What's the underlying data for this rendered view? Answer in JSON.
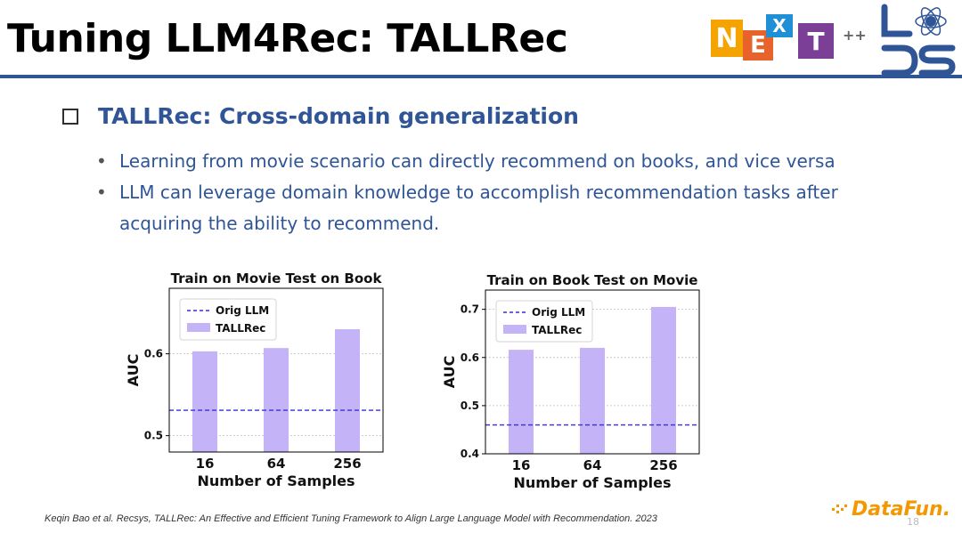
{
  "slide": {
    "title": "Tuning LLM4Rec: TALLRec",
    "section_heading": "TALLRec: Cross-domain generalization",
    "bullets": [
      "Learning from movie scenario can directly recommend on books, and vice versa",
      "LLM can leverage domain knowledge to accomplish recommendation tasks after acquiring the ability to recommend."
    ],
    "citation": "Keqin Bao et al. Recsys, TALLRec: An Effective and Efficient Tuning Framework to Align Large Language Model with Recommendation. 2023",
    "page_number": "18"
  },
  "logos": {
    "next_letters": [
      "N",
      "E",
      "X",
      "T"
    ],
    "next_suffix": "++",
    "next_colors": [
      "#f5a300",
      "#e8632b",
      "#1f8fd6",
      "#7b3f98"
    ],
    "brand": "DataFun.",
    "brand_color": "#f39800",
    "lds_color": "#2f5597"
  },
  "colors": {
    "accent": "#2f5597",
    "bar": "#c5b3f7",
    "orig_line": "#3a2fd6"
  },
  "chart_data": [
    {
      "type": "bar",
      "title": "Train on Movie Test on Book",
      "xlabel": "Number of Samples",
      "ylabel": "AUC",
      "categories": [
        "16",
        "64",
        "256"
      ],
      "ylim": [
        0.48,
        0.68
      ],
      "yticks": [
        0.5,
        0.6
      ],
      "series": [
        {
          "name": "TALLRec",
          "values": [
            0.603,
            0.607,
            0.63
          ]
        }
      ],
      "reference_line": {
        "name": "Orig LLM",
        "value": 0.531,
        "style": "dashed"
      },
      "grid": "horizontal",
      "legend": "top-left"
    },
    {
      "type": "bar",
      "title": "Train on Book Test on Movie",
      "xlabel": "Number of Samples",
      "ylabel": "AUC",
      "categories": [
        "16",
        "64",
        "256"
      ],
      "ylim": [
        0.4,
        0.74
      ],
      "yticks": [
        0.4,
        0.5,
        0.6,
        0.7
      ],
      "series": [
        {
          "name": "TALLRec",
          "values": [
            0.616,
            0.62,
            0.705
          ]
        }
      ],
      "reference_line": {
        "name": "Orig LLM",
        "value": 0.46,
        "style": "dashed"
      },
      "grid": "horizontal",
      "legend": "top-left"
    }
  ]
}
